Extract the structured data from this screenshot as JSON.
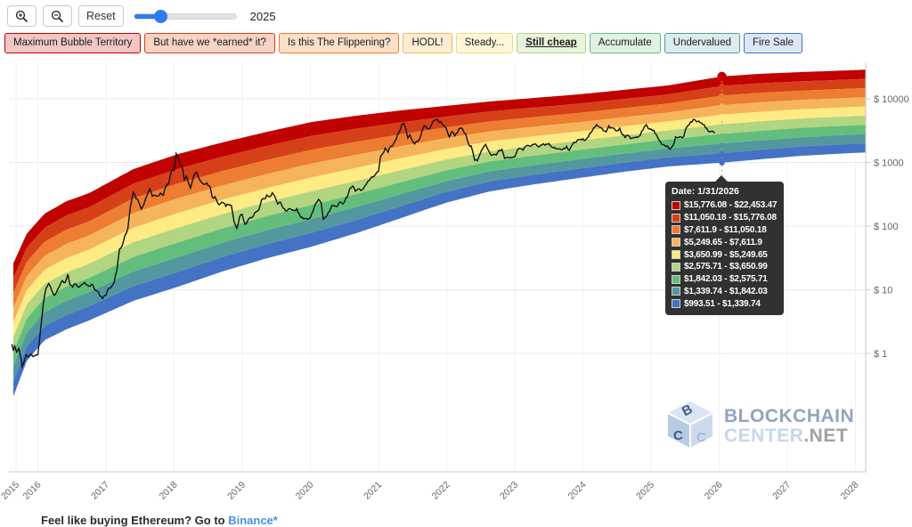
{
  "toolbar": {
    "reset_label": "Reset",
    "slider_value": "2025",
    "accent_color": "#2f7cf0"
  },
  "legend_buttons": [
    {
      "label": "Maximum Bubble Territory",
      "border": "#c00200",
      "bg": "#f2c6c5",
      "active": false
    },
    {
      "label": "But have we *earned* it?",
      "border": "#d64018",
      "bg": "#f6d3c3",
      "active": false
    },
    {
      "label": "Is this The Flippening?",
      "border": "#ed7d31",
      "bg": "#fadfc9",
      "active": false
    },
    {
      "label": "HODL!",
      "border": "#f6b45a",
      "bg": "#fcecd2",
      "active": false
    },
    {
      "label": "Steady...",
      "border": "#efd97c",
      "bg": "#fdf7d9",
      "active": false
    },
    {
      "label": "Still cheap",
      "border": "#aed188",
      "bg": "#e9f3dc",
      "active": true
    },
    {
      "label": "Accumulate",
      "border": "#63be7b",
      "bg": "#dff2e3",
      "active": false
    },
    {
      "label": "Undervalued",
      "border": "#54989f",
      "bg": "#dcebec",
      "active": false
    },
    {
      "label": "Fire Sale",
      "border": "#4472c4",
      "bg": "#dce6f6",
      "active": false
    }
  ],
  "chart_data": {
    "type": "line",
    "x_ticks": [
      {
        "label": "2015",
        "year": 2015.68
      },
      {
        "label": "2016",
        "year": 2016
      },
      {
        "label": "2017",
        "year": 2017
      },
      {
        "label": "2018",
        "year": 2018
      },
      {
        "label": "2019",
        "year": 2019
      },
      {
        "label": "2020",
        "year": 2020
      },
      {
        "label": "2021",
        "year": 2021
      },
      {
        "label": "2022",
        "year": 2022
      },
      {
        "label": "2023",
        "year": 2023
      },
      {
        "label": "2024",
        "year": 2024
      },
      {
        "label": "2025",
        "year": 2025
      },
      {
        "label": "2026",
        "year": 2026
      },
      {
        "label": "2027",
        "year": 2027
      },
      {
        "label": "2028",
        "year": 2028
      }
    ],
    "y_ticks": [
      {
        "label": "$ 1",
        "value": 1
      },
      {
        "label": "$ 10",
        "value": 10
      },
      {
        "label": "$ 100",
        "value": 100
      },
      {
        "label": "$ 1000",
        "value": 1000
      },
      {
        "label": "$ 10000",
        "value": 10000
      }
    ],
    "band_colors": [
      "#c00200",
      "#d64018",
      "#ed7d31",
      "#f6b45a",
      "#feeb84",
      "#b1d580",
      "#63be7b",
      "#54989f",
      "#4472c4"
    ],
    "band_edges": {
      "years": [
        2015.64,
        2015.84,
        2016.1,
        2016.42,
        2016.75,
        2017.4,
        2018.06,
        2018.71,
        2019.37,
        2020.02,
        2020.67,
        2021.33,
        2021.98,
        2022.63,
        2023.29,
        2023.94,
        2024.6,
        2025.25,
        2026.04,
        2026.6,
        2027.2,
        2027.9,
        2028.25
      ],
      "top": [
        26,
        77,
        157,
        246,
        329,
        785,
        1357,
        2065,
        3040,
        4325,
        5420,
        6577,
        7726,
        9078,
        10330,
        11749,
        13804,
        16218,
        22453,
        24700,
        26300,
        28000,
        29000
      ],
      "bottom": [
        0.21,
        0.77,
        1.62,
        2.39,
        3.29,
        6.68,
        11.2,
        19.4,
        31.4,
        47.6,
        77.3,
        133.7,
        231,
        351,
        454,
        569,
        713,
        865,
        993.5,
        1120,
        1270,
        1400,
        1450
      ]
    },
    "hover": {
      "date_label": "Date: 1/31/2026",
      "x_year": 2026.04,
      "boundary_prices": [
        22453.47,
        15776.08,
        11050.18,
        7611.9,
        5249.65,
        3650.99,
        2575.71,
        1842.03,
        1339.74,
        993.51
      ],
      "dash_color": "#eda13f"
    },
    "price_series": [
      [
        2015.62,
        1.4
      ],
      [
        2015.64,
        1.1
      ],
      [
        2015.66,
        1.3
      ],
      [
        2015.69,
        1.05
      ],
      [
        2015.72,
        1.2
      ],
      [
        2015.75,
        0.85
      ],
      [
        2015.77,
        0.62
      ],
      [
        2015.8,
        0.75
      ],
      [
        2015.83,
        0.95
      ],
      [
        2015.86,
        0.88
      ],
      [
        2015.9,
        0.98
      ],
      [
        2015.93,
        0.89
      ],
      [
        2015.96,
        0.93
      ],
      [
        2016.0,
        0.95
      ],
      [
        2016.04,
        2.4
      ],
      [
        2016.08,
        6.0
      ],
      [
        2016.12,
        10.5
      ],
      [
        2016.16,
        12.5
      ],
      [
        2016.2,
        10.0
      ],
      [
        2016.24,
        8.2
      ],
      [
        2016.28,
        9.5
      ],
      [
        2016.32,
        11.5
      ],
      [
        2016.36,
        14.0
      ],
      [
        2016.4,
        13.0
      ],
      [
        2016.44,
        17.5
      ],
      [
        2016.47,
        12.0
      ],
      [
        2016.51,
        11.0
      ],
      [
        2016.55,
        12.5
      ],
      [
        2016.59,
        11.0
      ],
      [
        2016.63,
        11.8
      ],
      [
        2016.67,
        12.6
      ],
      [
        2016.71,
        12.0
      ],
      [
        2016.75,
        11.4
      ],
      [
        2016.79,
        12.2
      ],
      [
        2016.83,
        10.2
      ],
      [
        2016.87,
        9.6
      ],
      [
        2016.91,
        8.0
      ],
      [
        2016.95,
        7.3
      ],
      [
        2017.0,
        8.2
      ],
      [
        2017.04,
        10.6
      ],
      [
        2017.08,
        11.2
      ],
      [
        2017.12,
        13.0
      ],
      [
        2017.16,
        20.0
      ],
      [
        2017.2,
        44.0
      ],
      [
        2017.24,
        50.0
      ],
      [
        2017.28,
        72.0
      ],
      [
        2017.32,
        90.0
      ],
      [
        2017.36,
        205.0
      ],
      [
        2017.4,
        340.0
      ],
      [
        2017.44,
        270.0
      ],
      [
        2017.48,
        240.0
      ],
      [
        2017.52,
        185.0
      ],
      [
        2017.56,
        225.0
      ],
      [
        2017.6,
        300.0
      ],
      [
        2017.64,
        385.0
      ],
      [
        2017.68,
        295.0
      ],
      [
        2017.72,
        305.0
      ],
      [
        2017.76,
        298.0
      ],
      [
        2017.8,
        330.0
      ],
      [
        2017.84,
        305.0
      ],
      [
        2017.88,
        420.0
      ],
      [
        2017.92,
        465.0
      ],
      [
        2017.96,
        720.0
      ],
      [
        2018.0,
        755.0
      ],
      [
        2018.03,
        1380.0
      ],
      [
        2018.06,
        1180.0
      ],
      [
        2018.09,
        920.0
      ],
      [
        2018.12,
        855.0
      ],
      [
        2018.15,
        530.0
      ],
      [
        2018.18,
        610.0
      ],
      [
        2018.21,
        480.0
      ],
      [
        2018.24,
        395.0
      ],
      [
        2018.27,
        520.0
      ],
      [
        2018.3,
        660.0
      ],
      [
        2018.33,
        705.0
      ],
      [
        2018.36,
        580.0
      ],
      [
        2018.4,
        490.0
      ],
      [
        2018.44,
        455.0
      ],
      [
        2018.48,
        475.0
      ],
      [
        2018.52,
        430.0
      ],
      [
        2018.56,
        285.0
      ],
      [
        2018.6,
        290.0
      ],
      [
        2018.64,
        230.0
      ],
      [
        2018.68,
        225.0
      ],
      [
        2018.72,
        232.0
      ],
      [
        2018.76,
        205.0
      ],
      [
        2018.8,
        215.0
      ],
      [
        2018.84,
        210.0
      ],
      [
        2018.88,
        118.0
      ],
      [
        2018.92,
        92.0
      ],
      [
        2018.96,
        138.0
      ],
      [
        2019.0,
        152.0
      ],
      [
        2019.04,
        107.0
      ],
      [
        2019.08,
        122.0
      ],
      [
        2019.12,
        136.0
      ],
      [
        2019.16,
        142.0
      ],
      [
        2019.2,
        167.0
      ],
      [
        2019.24,
        178.0
      ],
      [
        2019.28,
        252.0
      ],
      [
        2019.32,
        268.0
      ],
      [
        2019.36,
        308.0
      ],
      [
        2019.4,
        288.0
      ],
      [
        2019.44,
        335.0
      ],
      [
        2019.48,
        290.0
      ],
      [
        2019.52,
        222.0
      ],
      [
        2019.56,
        238.0
      ],
      [
        2019.6,
        192.0
      ],
      [
        2019.64,
        172.0
      ],
      [
        2019.68,
        186.0
      ],
      [
        2019.72,
        182.0
      ],
      [
        2019.76,
        176.0
      ],
      [
        2019.8,
        188.0
      ],
      [
        2019.84,
        152.0
      ],
      [
        2019.88,
        138.0
      ],
      [
        2019.92,
        132.0
      ],
      [
        2019.96,
        128.0
      ],
      [
        2020.0,
        136.0
      ],
      [
        2020.04,
        172.0
      ],
      [
        2020.08,
        226.0
      ],
      [
        2020.12,
        264.0
      ],
      [
        2020.16,
        228.0
      ],
      [
        2020.19,
        128.0
      ],
      [
        2020.22,
        138.0
      ],
      [
        2020.26,
        162.0
      ],
      [
        2020.3,
        192.0
      ],
      [
        2020.34,
        212.0
      ],
      [
        2020.38,
        201.0
      ],
      [
        2020.42,
        232.0
      ],
      [
        2020.46,
        229.0
      ],
      [
        2020.5,
        241.0
      ],
      [
        2020.54,
        288.0
      ],
      [
        2020.58,
        392.0
      ],
      [
        2020.62,
        428.0
      ],
      [
        2020.66,
        352.0
      ],
      [
        2020.7,
        382.0
      ],
      [
        2020.74,
        362.0
      ],
      [
        2020.78,
        392.0
      ],
      [
        2020.82,
        452.0
      ],
      [
        2020.86,
        518.0
      ],
      [
        2020.9,
        598.0
      ],
      [
        2020.95,
        638.0
      ],
      [
        2021.0,
        732.0
      ],
      [
        2021.03,
        1250.0
      ],
      [
        2021.06,
        1370.0
      ],
      [
        2021.1,
        1680.0
      ],
      [
        2021.14,
        1450.0
      ],
      [
        2021.18,
        1800.0
      ],
      [
        2021.22,
        1950.0
      ],
      [
        2021.26,
        2320.0
      ],
      [
        2021.3,
        2950.0
      ],
      [
        2021.34,
        3900.0
      ],
      [
        2021.37,
        4130.0
      ],
      [
        2021.4,
        3420.0
      ],
      [
        2021.43,
        2420.0
      ],
      [
        2021.46,
        2720.0
      ],
      [
        2021.49,
        2260.0
      ],
      [
        2021.53,
        1960.0
      ],
      [
        2021.56,
        2160.0
      ],
      [
        2021.6,
        2320.0
      ],
      [
        2021.64,
        3200.0
      ],
      [
        2021.67,
        3780.0
      ],
      [
        2021.71,
        3460.0
      ],
      [
        2021.75,
        3360.0
      ],
      [
        2021.79,
        4160.0
      ],
      [
        2021.83,
        4620.0
      ],
      [
        2021.86,
        4780.0
      ],
      [
        2021.89,
        4260.0
      ],
      [
        2021.93,
        4080.0
      ],
      [
        2021.97,
        3720.0
      ],
      [
        2022.0,
        3320.0
      ],
      [
        2022.04,
        2520.0
      ],
      [
        2022.08,
        3060.0
      ],
      [
        2022.12,
        2620.0
      ],
      [
        2022.16,
        2960.0
      ],
      [
        2022.2,
        3460.0
      ],
      [
        2022.24,
        3260.0
      ],
      [
        2022.28,
        2820.0
      ],
      [
        2022.32,
        1960.0
      ],
      [
        2022.36,
        1820.0
      ],
      [
        2022.41,
        1080.0
      ],
      [
        2022.45,
        1060.0
      ],
      [
        2022.49,
        1360.0
      ],
      [
        2022.53,
        1660.0
      ],
      [
        2022.57,
        1920.0
      ],
      [
        2022.61,
        1560.0
      ],
      [
        2022.65,
        1310.0
      ],
      [
        2022.69,
        1340.0
      ],
      [
        2022.73,
        1310.0
      ],
      [
        2022.77,
        1560.0
      ],
      [
        2022.81,
        1610.0
      ],
      [
        2022.85,
        1160.0
      ],
      [
        2022.89,
        1210.0
      ],
      [
        2022.93,
        1190.0
      ],
      [
        2022.97,
        1210.0
      ],
      [
        2023.0,
        1230.0
      ],
      [
        2023.04,
        1580.0
      ],
      [
        2023.08,
        1660.0
      ],
      [
        2023.12,
        1560.0
      ],
      [
        2023.16,
        1790.0
      ],
      [
        2023.2,
        1850.0
      ],
      [
        2023.24,
        1810.0
      ],
      [
        2023.28,
        1910.0
      ],
      [
        2023.32,
        1880.0
      ],
      [
        2023.36,
        1760.0
      ],
      [
        2023.4,
        1900.0
      ],
      [
        2023.44,
        1870.0
      ],
      [
        2023.48,
        1930.0
      ],
      [
        2023.52,
        1850.0
      ],
      [
        2023.56,
        1700.0
      ],
      [
        2023.6,
        1650.0
      ],
      [
        2023.64,
        1630.0
      ],
      [
        2023.68,
        1590.0
      ],
      [
        2023.72,
        1670.0
      ],
      [
        2023.76,
        1800.0
      ],
      [
        2023.8,
        1550.0
      ],
      [
        2023.84,
        1870.0
      ],
      [
        2023.88,
        2060.0
      ],
      [
        2023.92,
        2260.0
      ],
      [
        2023.96,
        2310.0
      ],
      [
        2024.0,
        2360.0
      ],
      [
        2024.04,
        2260.0
      ],
      [
        2024.08,
        2520.0
      ],
      [
        2024.12,
        2960.0
      ],
      [
        2024.16,
        3520.0
      ],
      [
        2024.2,
        3940.0
      ],
      [
        2024.23,
        3660.0
      ],
      [
        2024.26,
        3520.0
      ],
      [
        2024.3,
        3160.0
      ],
      [
        2024.34,
        3020.0
      ],
      [
        2024.38,
        3760.0
      ],
      [
        2024.42,
        3520.0
      ],
      [
        2024.46,
        3420.0
      ],
      [
        2024.5,
        3160.0
      ],
      [
        2024.54,
        3470.0
      ],
      [
        2024.58,
        2720.0
      ],
      [
        2024.62,
        2460.0
      ],
      [
        2024.66,
        2660.0
      ],
      [
        2024.7,
        2360.0
      ],
      [
        2024.74,
        2460.0
      ],
      [
        2024.78,
        2520.0
      ],
      [
        2024.82,
        2560.0
      ],
      [
        2024.86,
        3060.0
      ],
      [
        2024.9,
        3620.0
      ],
      [
        2024.93,
        3920.0
      ],
      [
        2024.96,
        3420.0
      ],
      [
        2025.0,
        3360.0
      ],
      [
        2025.04,
        3220.0
      ],
      [
        2025.08,
        2720.0
      ],
      [
        2025.12,
        2220.0
      ],
      [
        2025.16,
        1920.0
      ],
      [
        2025.2,
        1860.0
      ],
      [
        2025.24,
        1820.0
      ],
      [
        2025.28,
        1610.0
      ],
      [
        2025.32,
        1820.0
      ],
      [
        2025.36,
        2520.0
      ],
      [
        2025.4,
        2460.0
      ],
      [
        2025.44,
        2510.0
      ],
      [
        2025.48,
        2560.0
      ],
      [
        2025.52,
        3560.0
      ],
      [
        2025.56,
        3920.0
      ],
      [
        2025.6,
        4320.0
      ],
      [
        2025.64,
        4720.0
      ],
      [
        2025.67,
        4360.0
      ],
      [
        2025.7,
        4460.0
      ],
      [
        2025.74,
        4160.0
      ],
      [
        2025.78,
        3920.0
      ],
      [
        2025.82,
        3420.0
      ],
      [
        2025.86,
        3020.0
      ],
      [
        2025.9,
        3120.0
      ],
      [
        2025.94,
        2960.0
      ]
    ]
  },
  "tooltip": {
    "title": "Date: 1/31/2026",
    "rows": [
      {
        "color": "#c00200",
        "range": "$15,776.08 - $22,453.47"
      },
      {
        "color": "#d64018",
        "range": "$11,050.18 - $15,776.08"
      },
      {
        "color": "#ed7d31",
        "range": "$7,611.9 - $11,050.18"
      },
      {
        "color": "#f6b45a",
        "range": "$5,249.65 - $7,611.9"
      },
      {
        "color": "#feeb84",
        "range": "$3,650.99 - $5,249.65"
      },
      {
        "color": "#b1d580",
        "range": "$2,575.71 - $3,650.99"
      },
      {
        "color": "#63be7b",
        "range": "$1,842.03 - $2,575.71"
      },
      {
        "color": "#54989f",
        "range": "$1,339.74 - $1,842.03"
      },
      {
        "color": "#4472c4",
        "range": "$993.51 - $1,339.74"
      }
    ]
  },
  "watermark": {
    "line1": "BLOCKCHAIN",
    "line2a": "CENTER",
    "line2b": ".NET"
  },
  "footer": {
    "prefix": "Feel like buying Ethereum? Go to ",
    "link_label": "Binance*"
  }
}
